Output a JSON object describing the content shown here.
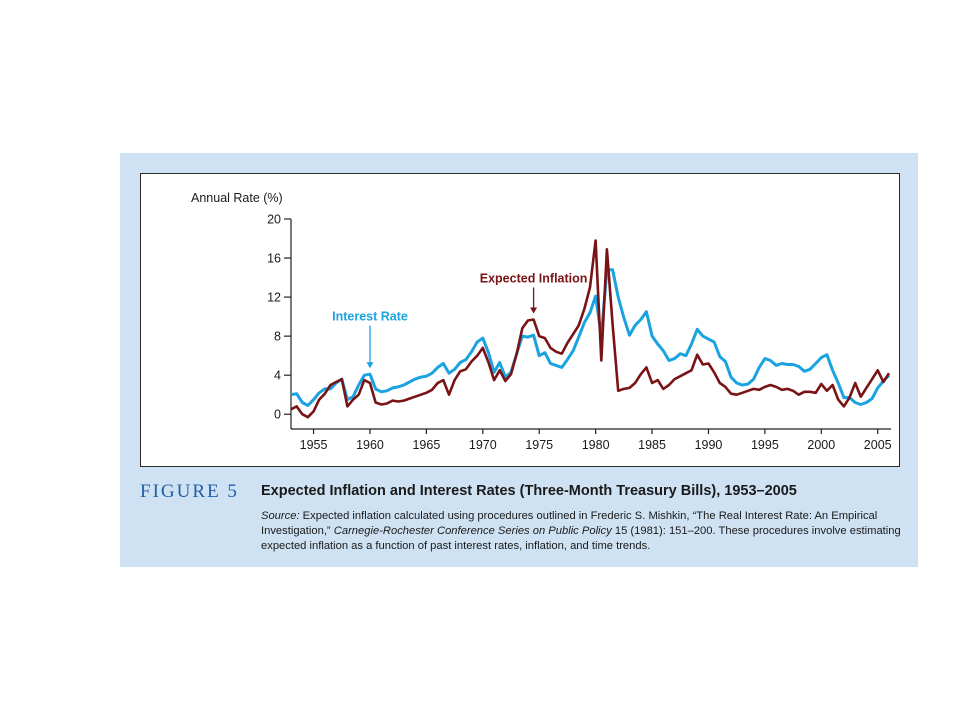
{
  "figure": {
    "label": "FIGURE 5",
    "title": "Expected Inflation and Interest Rates (Three-Month Treasury Bills), 1953–2005",
    "source_lead": "Source:",
    "source_part1": " Expected inflation calculated using procedures outlined in Frederic S. Mishkin, “The Real Interest Rate: An Empirical Investigation,” ",
    "source_journal": "Carnegie-Rochester Conference Series on Public Policy",
    "source_part2": " 15 (1981): 151–200. These procedures involve estimating expected inflation as a function of past interest rates, inflation, and time trends."
  },
  "colors": {
    "interest_rate": "#1aa3e0",
    "expected_inflation": "#7a1316",
    "figure_label": "#1f5fa6",
    "panel_background": "#cfe2f3"
  },
  "chart_data": {
    "type": "line",
    "ylabel": "Annual Rate (%)",
    "ylim": [
      -1,
      20
    ],
    "xlim": [
      1953,
      2006
    ],
    "yticks": [
      0,
      4,
      8,
      12,
      16,
      20
    ],
    "xticks": [
      1955,
      1960,
      1965,
      1970,
      1975,
      1980,
      1985,
      1990,
      1995,
      2000,
      2005
    ],
    "grid": false,
    "series": [
      {
        "name": "Interest Rate",
        "color": "#1aa3e0",
        "label_anchor_x": 1960,
        "points": [
          [
            1953,
            2.0
          ],
          [
            1953.5,
            2.1
          ],
          [
            1954,
            1.2
          ],
          [
            1954.5,
            0.9
          ],
          [
            1955,
            1.5
          ],
          [
            1955.5,
            2.2
          ],
          [
            1956,
            2.6
          ],
          [
            1956.5,
            2.6
          ],
          [
            1957,
            3.2
          ],
          [
            1957.5,
            3.6
          ],
          [
            1958,
            1.5
          ],
          [
            1958.5,
            1.8
          ],
          [
            1959,
            3.0
          ],
          [
            1959.5,
            4.0
          ],
          [
            1960,
            4.1
          ],
          [
            1960.5,
            2.6
          ],
          [
            1961,
            2.3
          ],
          [
            1961.5,
            2.4
          ],
          [
            1962,
            2.7
          ],
          [
            1962.5,
            2.8
          ],
          [
            1963,
            3.0
          ],
          [
            1963.5,
            3.3
          ],
          [
            1964,
            3.6
          ],
          [
            1964.5,
            3.8
          ],
          [
            1965,
            3.9
          ],
          [
            1965.5,
            4.2
          ],
          [
            1966,
            4.8
          ],
          [
            1966.5,
            5.2
          ],
          [
            1967,
            4.2
          ],
          [
            1967.5,
            4.6
          ],
          [
            1968,
            5.3
          ],
          [
            1968.5,
            5.6
          ],
          [
            1969,
            6.4
          ],
          [
            1969.5,
            7.4
          ],
          [
            1970,
            7.8
          ],
          [
            1970.5,
            6.3
          ],
          [
            1971,
            4.3
          ],
          [
            1971.5,
            5.3
          ],
          [
            1972,
            3.8
          ],
          [
            1972.5,
            4.3
          ],
          [
            1973,
            6.2
          ],
          [
            1973.5,
            8.0
          ],
          [
            1974,
            7.9
          ],
          [
            1974.5,
            8.1
          ],
          [
            1975,
            6.0
          ],
          [
            1975.5,
            6.3
          ],
          [
            1976,
            5.2
          ],
          [
            1976.5,
            5.0
          ],
          [
            1977,
            4.8
          ],
          [
            1977.5,
            5.6
          ],
          [
            1978,
            6.5
          ],
          [
            1978.5,
            7.9
          ],
          [
            1979,
            9.4
          ],
          [
            1979.5,
            10.4
          ],
          [
            1980,
            12.1
          ],
          [
            1980.5,
            8.0
          ],
          [
            1981,
            14.8
          ],
          [
            1981.5,
            14.8
          ],
          [
            1982,
            12.0
          ],
          [
            1982.5,
            9.9
          ],
          [
            1983,
            8.1
          ],
          [
            1983.5,
            9.1
          ],
          [
            1984,
            9.7
          ],
          [
            1984.5,
            10.5
          ],
          [
            1985,
            8.0
          ],
          [
            1985.5,
            7.2
          ],
          [
            1986,
            6.5
          ],
          [
            1986.5,
            5.5
          ],
          [
            1987,
            5.7
          ],
          [
            1987.5,
            6.2
          ],
          [
            1988,
            6.0
          ],
          [
            1988.5,
            7.2
          ],
          [
            1989,
            8.7
          ],
          [
            1989.5,
            8.0
          ],
          [
            1990,
            7.7
          ],
          [
            1990.5,
            7.4
          ],
          [
            1991,
            5.9
          ],
          [
            1991.5,
            5.4
          ],
          [
            1992,
            3.8
          ],
          [
            1992.5,
            3.2
          ],
          [
            1993,
            3.0
          ],
          [
            1993.5,
            3.1
          ],
          [
            1994,
            3.6
          ],
          [
            1994.5,
            4.8
          ],
          [
            1995,
            5.7
          ],
          [
            1995.5,
            5.5
          ],
          [
            1996,
            5.0
          ],
          [
            1996.5,
            5.2
          ],
          [
            1997,
            5.1
          ],
          [
            1997.5,
            5.1
          ],
          [
            1998,
            4.9
          ],
          [
            1998.5,
            4.4
          ],
          [
            1999,
            4.6
          ],
          [
            1999.5,
            5.2
          ],
          [
            2000,
            5.8
          ],
          [
            2000.5,
            6.1
          ],
          [
            2001,
            4.5
          ],
          [
            2001.5,
            3.2
          ],
          [
            2002,
            1.7
          ],
          [
            2002.5,
            1.7
          ],
          [
            2003,
            1.2
          ],
          [
            2003.5,
            1.0
          ],
          [
            2004,
            1.2
          ],
          [
            2004.5,
            1.6
          ],
          [
            2005,
            2.7
          ],
          [
            2005.5,
            3.4
          ],
          [
            2006,
            4.0
          ]
        ]
      },
      {
        "name": "Expected Inflation",
        "color": "#7a1316",
        "label_anchor_x": 1974.5,
        "points": [
          [
            1953,
            0.5
          ],
          [
            1953.5,
            0.8
          ],
          [
            1954,
            0.0
          ],
          [
            1954.5,
            -0.3
          ],
          [
            1955,
            0.3
          ],
          [
            1955.5,
            1.5
          ],
          [
            1956,
            2.1
          ],
          [
            1956.5,
            3.0
          ],
          [
            1957,
            3.3
          ],
          [
            1957.5,
            3.6
          ],
          [
            1958,
            0.8
          ],
          [
            1958.5,
            1.5
          ],
          [
            1959,
            2.0
          ],
          [
            1959.5,
            3.5
          ],
          [
            1960,
            3.2
          ],
          [
            1960.5,
            1.2
          ],
          [
            1961,
            1.0
          ],
          [
            1961.5,
            1.1
          ],
          [
            1962,
            1.4
          ],
          [
            1962.5,
            1.3
          ],
          [
            1963,
            1.4
          ],
          [
            1963.5,
            1.6
          ],
          [
            1964,
            1.8
          ],
          [
            1964.5,
            2.0
          ],
          [
            1965,
            2.2
          ],
          [
            1965.5,
            2.5
          ],
          [
            1966,
            3.2
          ],
          [
            1966.5,
            3.5
          ],
          [
            1967,
            2.0
          ],
          [
            1967.5,
            3.5
          ],
          [
            1968,
            4.4
          ],
          [
            1968.5,
            4.6
          ],
          [
            1969,
            5.4
          ],
          [
            1969.5,
            6.0
          ],
          [
            1970,
            6.8
          ],
          [
            1970.5,
            5.3
          ],
          [
            1971,
            3.5
          ],
          [
            1971.5,
            4.5
          ],
          [
            1972,
            3.4
          ],
          [
            1972.5,
            4.1
          ],
          [
            1973,
            6.2
          ],
          [
            1973.5,
            8.8
          ],
          [
            1974,
            9.6
          ],
          [
            1974.5,
            9.7
          ],
          [
            1975,
            8.0
          ],
          [
            1975.5,
            7.8
          ],
          [
            1976,
            6.8
          ],
          [
            1976.5,
            6.4
          ],
          [
            1977,
            6.2
          ],
          [
            1977.5,
            7.3
          ],
          [
            1978,
            8.2
          ],
          [
            1978.5,
            9.1
          ],
          [
            1979,
            10.8
          ],
          [
            1979.5,
            13.0
          ],
          [
            1980,
            17.8
          ],
          [
            1980.5,
            5.5
          ],
          [
            1981,
            16.9
          ],
          [
            1981.5,
            9.2
          ],
          [
            1982,
            2.4
          ],
          [
            1982.5,
            2.6
          ],
          [
            1983,
            2.7
          ],
          [
            1983.5,
            3.2
          ],
          [
            1984,
            4.1
          ],
          [
            1984.5,
            4.8
          ],
          [
            1985,
            3.2
          ],
          [
            1985.5,
            3.5
          ],
          [
            1986,
            2.6
          ],
          [
            1986.5,
            3.0
          ],
          [
            1987,
            3.6
          ],
          [
            1987.5,
            3.9
          ],
          [
            1988,
            4.2
          ],
          [
            1988.5,
            4.5
          ],
          [
            1989,
            6.1
          ],
          [
            1989.5,
            5.1
          ],
          [
            1990,
            5.2
          ],
          [
            1990.5,
            4.3
          ],
          [
            1991,
            3.2
          ],
          [
            1991.5,
            2.8
          ],
          [
            1992,
            2.1
          ],
          [
            1992.5,
            2.0
          ],
          [
            1993,
            2.2
          ],
          [
            1993.5,
            2.4
          ],
          [
            1994,
            2.6
          ],
          [
            1994.5,
            2.5
          ],
          [
            1995,
            2.8
          ],
          [
            1995.5,
            3.0
          ],
          [
            1996,
            2.8
          ],
          [
            1996.5,
            2.5
          ],
          [
            1997,
            2.6
          ],
          [
            1997.5,
            2.4
          ],
          [
            1998,
            2.0
          ],
          [
            1998.5,
            2.3
          ],
          [
            1999,
            2.3
          ],
          [
            1999.5,
            2.2
          ],
          [
            2000,
            3.1
          ],
          [
            2000.5,
            2.4
          ],
          [
            2001,
            3.0
          ],
          [
            2001.5,
            1.5
          ],
          [
            2002,
            0.8
          ],
          [
            2002.5,
            1.7
          ],
          [
            2003,
            3.2
          ],
          [
            2003.5,
            1.8
          ],
          [
            2004,
            2.7
          ],
          [
            2004.5,
            3.6
          ],
          [
            2005,
            4.5
          ],
          [
            2005.5,
            3.3
          ],
          [
            2006,
            4.2
          ]
        ]
      }
    ]
  }
}
